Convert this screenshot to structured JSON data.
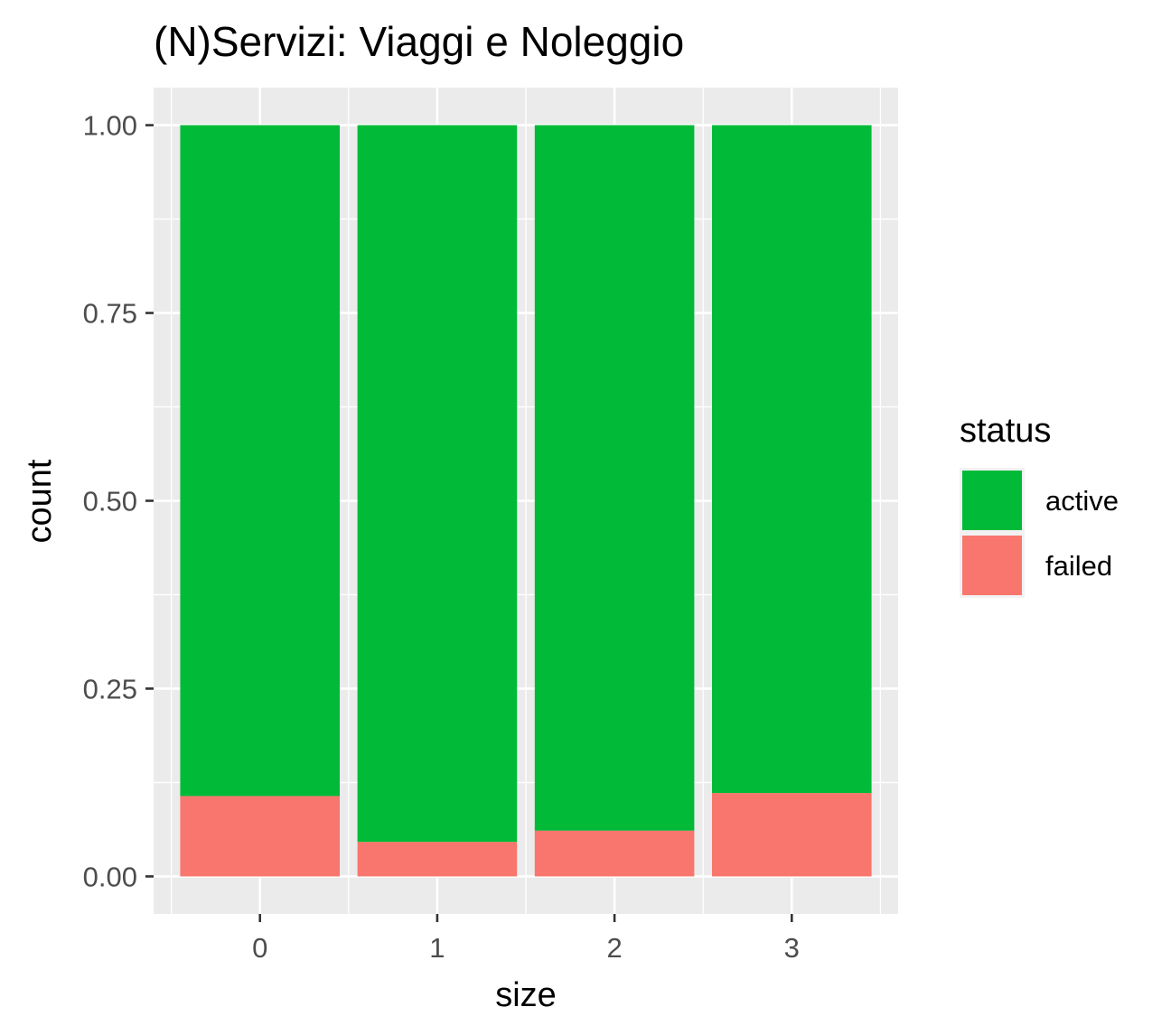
{
  "chart_data": {
    "type": "bar",
    "stacked": true,
    "title": "(N)Servizi: Viaggi e Noleggio",
    "xlabel": "size",
    "ylabel": "count",
    "categories": [
      "0",
      "1",
      "2",
      "3"
    ],
    "ylim": [
      -0.05,
      1.05
    ],
    "yticks": [
      {
        "value": 0,
        "label": "0.00"
      },
      {
        "value": 0.25,
        "label": "0.25"
      },
      {
        "value": 0.5,
        "label": "0.50"
      },
      {
        "value": 0.75,
        "label": "0.75"
      },
      {
        "value": 1,
        "label": "1.00"
      }
    ],
    "series": [
      {
        "name": "failed",
        "color": "#F8766D",
        "values": [
          0.107,
          0.046,
          0.061,
          0.111
        ]
      },
      {
        "name": "active",
        "color": "#00BA38",
        "values": [
          0.893,
          0.954,
          0.939,
          0.889
        ]
      }
    ],
    "legend": {
      "title": "status",
      "position": "right",
      "entries": [
        {
          "label": "active",
          "color": "#00BA38"
        },
        {
          "label": "failed",
          "color": "#F8766D"
        }
      ]
    },
    "grid": true,
    "panel_background": "#EBEBEB",
    "grid_color": "#FFFFFF"
  }
}
